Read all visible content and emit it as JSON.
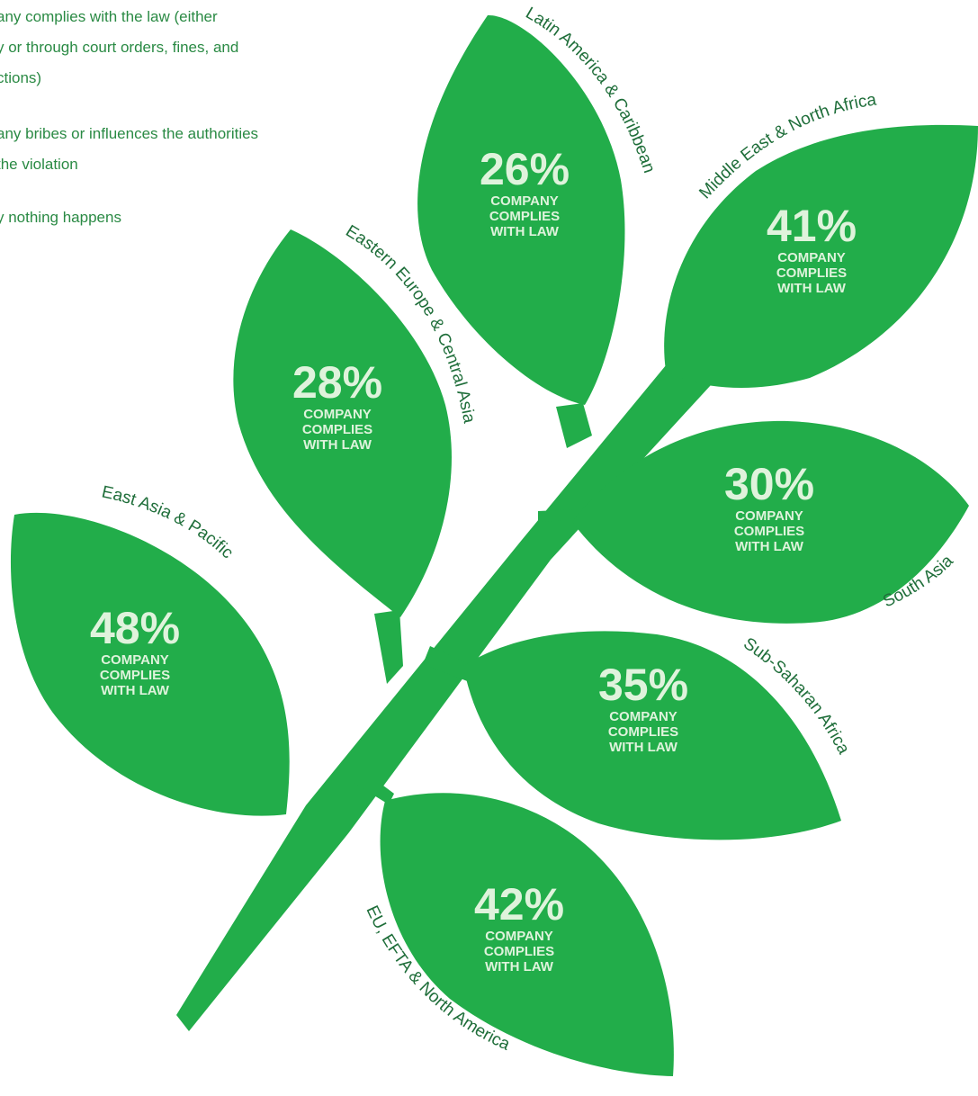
{
  "legend": {
    "items": [
      "any complies with the law (either",
      "y or through court orders, fines, and",
      "ctions)",
      "any bribes or influences the authorities",
      "the violation",
      "y nothing happens"
    ]
  },
  "colors": {
    "leaf": "#22ad4a",
    "stem": "#22ad4a",
    "value_text": "#dff3dc",
    "label_text": "#1f6e3a",
    "legend_text": "#2a8a44"
  },
  "chart_data": {
    "type": "infographic-leaves",
    "metric_label": "COMPANY COMPLIES WITH LAW",
    "metric_lines": [
      "COMPANY",
      "COMPLIES",
      "WITH LAW"
    ],
    "series": [
      {
        "name": "Latin America & Caribbean",
        "value": 26,
        "display": "26%"
      },
      {
        "name": "Middle East & North Africa",
        "value": 41,
        "display": "41%"
      },
      {
        "name": "Eastern Europe & Central Asia",
        "value": 28,
        "display": "28%"
      },
      {
        "name": "South Asia",
        "value": 30,
        "display": "30%"
      },
      {
        "name": "East Asia & Pacific",
        "value": 48,
        "display": "48%"
      },
      {
        "name": "Sub-Saharan Africa",
        "value": 35,
        "display": "35%"
      },
      {
        "name": "EU, EFTA & North America",
        "value": 42,
        "display": "42%"
      }
    ]
  }
}
